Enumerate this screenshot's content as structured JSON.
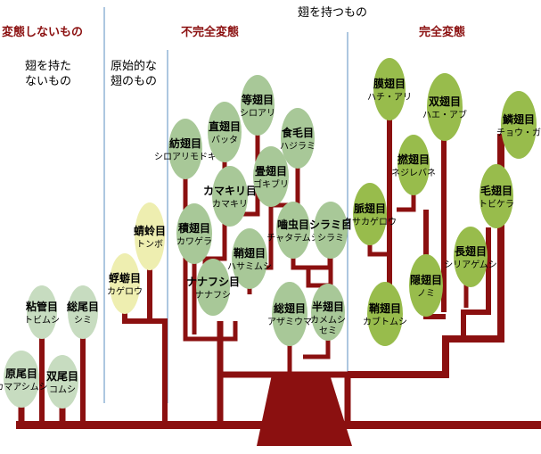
{
  "headers": {
    "ametabolous": "変態しないもの",
    "incomplete": "不完全変態",
    "winged": "翅を持つもの",
    "complete": "完全変態"
  },
  "notes": {
    "wingless": "翅を持た\nないもの",
    "primitive": "原始的な\n翅のもの"
  },
  "colors": {
    "trunk": "#8b1010",
    "divider": "#5b8fc0",
    "header": "#8b1010",
    "ellipse_primitive": "#c7dcc0",
    "ellipse_paleoptera": "#eeeeb0",
    "ellipse_incomplete": "#a8c898",
    "ellipse_complete": "#98bc4c"
  },
  "orders": [
    {
      "id": "protura",
      "name": "原尾目",
      "sub": "カマアシムシ",
      "group": "primitive"
    },
    {
      "id": "diplura",
      "name": "双尾目",
      "sub": "コムシ",
      "group": "primitive"
    },
    {
      "id": "collembola",
      "name": "粘管目",
      "sub": "トビムシ",
      "group": "primitive"
    },
    {
      "id": "thysanura",
      "name": "総尾目",
      "sub": "シミ",
      "group": "primitive"
    },
    {
      "id": "ephemeroptera",
      "name": "蜉蝣目",
      "sub": "カゲロウ",
      "group": "paleoptera"
    },
    {
      "id": "odonata",
      "name": "蜻蛉目",
      "sub": "トンボ",
      "group": "paleoptera"
    },
    {
      "id": "grylloblattodea",
      "name": "紡翅目",
      "sub": "シロアリモドキ",
      "group": "incomplete"
    },
    {
      "id": "orthoptera",
      "name": "直翅目",
      "sub": "バッタ",
      "group": "incomplete"
    },
    {
      "id": "isoptera",
      "name": "等翅目",
      "sub": "シロアリ",
      "group": "incomplete"
    },
    {
      "id": "mallophaga",
      "name": "食毛目",
      "sub": "ハジラミ",
      "group": "incomplete"
    },
    {
      "id": "mantodea",
      "name": "カマキリ目",
      "sub": "カマキリ",
      "group": "incomplete"
    },
    {
      "id": "blattodea",
      "name": "畳翅目",
      "sub": "ゴキブリ",
      "group": "incomplete"
    },
    {
      "id": "phasmida",
      "name": "積翅目",
      "sub": "カワゲラ",
      "group": "incomplete"
    },
    {
      "id": "anoplura",
      "name": "嚙虫目",
      "sub": "チャタテムシ",
      "group": "incomplete"
    },
    {
      "id": "thysanoptera",
      "name": "シラミ目",
      "sub": "シラミ",
      "group": "incomplete"
    },
    {
      "id": "dermaptera",
      "name": "鞘翅目",
      "sub": "ハサミムシ",
      "group": "incomplete"
    },
    {
      "id": "phasmatodea",
      "name": "ナナフシ目",
      "sub": "ナナフシ",
      "group": "incomplete"
    },
    {
      "id": "thysanoptera2",
      "name": "総翅目",
      "sub": "アザミウマ",
      "group": "incomplete"
    },
    {
      "id": "hemiptera",
      "name": "半翅目",
      "sub": "カメムシ\nセミ",
      "group": "incomplete"
    },
    {
      "id": "hymenoptera",
      "name": "膜翅目",
      "sub": "ハチ・アリ",
      "group": "complete"
    },
    {
      "id": "diptera",
      "name": "双翅目",
      "sub": "ハエ・アブ",
      "group": "complete"
    },
    {
      "id": "lepidoptera",
      "name": "鱗翅目",
      "sub": "チョウ・ガ",
      "group": "complete"
    },
    {
      "id": "strepsiptera",
      "name": "撚翅目",
      "sub": "ネジレバネ",
      "group": "complete"
    },
    {
      "id": "trichoptera",
      "name": "毛翅目",
      "sub": "トビケラ",
      "group": "complete"
    },
    {
      "id": "neuroptera",
      "name": "脈翅目",
      "sub": "クサカゲロウ",
      "group": "complete"
    },
    {
      "id": "mecoptera",
      "name": "長翅目",
      "sub": "シリアゲムシ",
      "group": "complete"
    },
    {
      "id": "siphonaptera",
      "name": "隠翅目",
      "sub": "ノミ",
      "group": "complete"
    },
    {
      "id": "coleoptera",
      "name": "鞘翅目",
      "sub": "カブトムシ",
      "group": "complete"
    }
  ]
}
